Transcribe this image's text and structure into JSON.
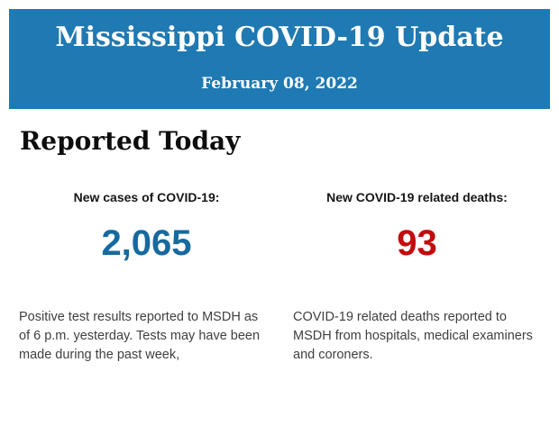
{
  "header": {
    "title": "Mississippi COVID-19 Update",
    "date": "February 08, 2022",
    "background_color": "#1f79b2",
    "text_color": "#ffffff"
  },
  "body": {
    "heading": "Reported Today",
    "stats": {
      "cases": {
        "label": "New cases of COVID-19:",
        "value": "2,065",
        "value_color": "#17699e",
        "description_lines": {
          "0": "Positive test results reported to MSDH as",
          "1": "of 6 p.m. yesterday. Tests may have been",
          "2": "made during the past week,"
        }
      },
      "deaths": {
        "label": "New COVID-19 related deaths:",
        "value": "93",
        "value_color": "#c20b0e",
        "description_lines": {
          "0": "COVID-19 related deaths reported to",
          "1": "MSDH from hospitals, medical examiners",
          "2": "and coroners."
        }
      }
    }
  }
}
